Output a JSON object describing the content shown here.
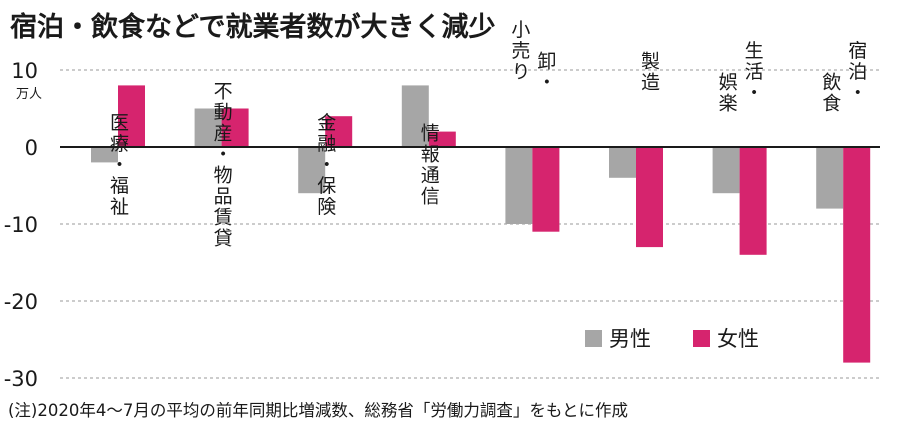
{
  "chart_data": {
    "type": "bar",
    "title": "宿泊・飲食などで就業者数が大きく減少",
    "unit_label": "万人",
    "note": "(注)2020年4～7月の平均の前年同期比増減数、総務省「労働力調査」をもとに作成",
    "categories": [
      "医療・福祉",
      "不動産・物品賃貸",
      "金融・保険",
      "情報通信",
      "卸・小売り",
      "製造",
      "生活・娯楽",
      "宿泊・飲食"
    ],
    "series": [
      {
        "name": "男性",
        "color": "#a6a6a6",
        "values": [
          -2,
          5,
          -6,
          8,
          -10,
          -4,
          -6,
          -8
        ]
      },
      {
        "name": "女性",
        "color": "#d6246e",
        "values": [
          8,
          5,
          4,
          2,
          -11,
          -13,
          -14,
          -28
        ]
      }
    ],
    "ylim": [
      -30,
      10
    ],
    "yticks": [
      10,
      0,
      -10,
      -20,
      -30
    ],
    "grid": "dashed-horizontal",
    "legend_position": "bottom-right"
  }
}
